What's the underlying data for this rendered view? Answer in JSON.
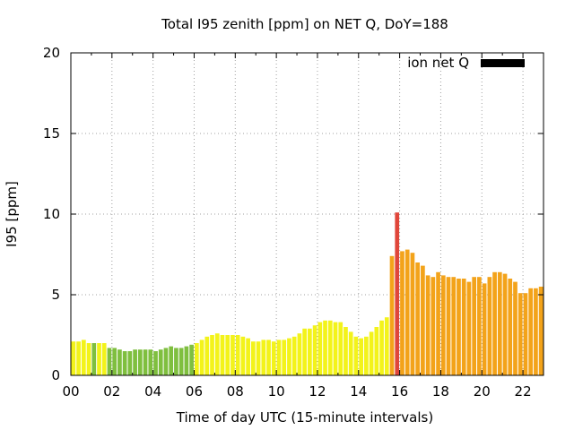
{
  "chart_data": {
    "type": "bar",
    "title": "Total I95 zenith [ppm] on NET Q, DoY=188",
    "xlabel": "Time of day UTC (15-minute intervals)",
    "ylabel": "I95 [ppm]",
    "ylim": [
      0,
      20
    ],
    "xlim": [
      0,
      23
    ],
    "y_ticks": [
      "0",
      "5",
      "10",
      "15",
      "20"
    ],
    "x_ticks": [
      "00",
      "02",
      "04",
      "06",
      "08",
      "10",
      "12",
      "14",
      "16",
      "18",
      "20",
      "22"
    ],
    "grid": true,
    "legend": {
      "label": "ion net Q",
      "color": "#000000",
      "placement": "top-right"
    },
    "interval_hours": 0.25,
    "values": [
      2.1,
      2.1,
      2.2,
      2.0,
      2.0,
      2.0,
      2.0,
      1.7,
      1.7,
      1.6,
      1.5,
      1.5,
      1.6,
      1.6,
      1.6,
      1.6,
      1.5,
      1.6,
      1.7,
      1.8,
      1.7,
      1.7,
      1.8,
      1.9,
      2.0,
      2.2,
      2.4,
      2.5,
      2.6,
      2.5,
      2.5,
      2.5,
      2.5,
      2.4,
      2.3,
      2.1,
      2.1,
      2.2,
      2.2,
      2.1,
      2.2,
      2.2,
      2.3,
      2.4,
      2.6,
      2.9,
      2.9,
      3.1,
      3.3,
      3.4,
      3.4,
      3.3,
      3.3,
      3.0,
      2.7,
      2.4,
      2.3,
      2.4,
      2.7,
      3.0,
      3.4,
      3.6,
      7.4,
      10.1,
      7.7,
      7.8,
      7.6,
      7.0,
      6.8,
      6.2,
      6.1,
      6.4,
      6.2,
      6.1,
      6.1,
      6.0,
      6.0,
      5.8,
      6.1,
      6.1,
      5.7,
      6.1,
      6.4,
      6.4,
      6.3,
      6.0,
      5.8,
      5.1,
      5.1,
      5.4,
      5.4,
      5.5,
      5.0
    ],
    "colors": [
      "#f3f31a",
      "#f3f31a",
      "#f3f31a",
      "#f3f31a",
      "#7fbf3f",
      "#f3f31a",
      "#f3f31a",
      "#7fbf3f",
      "#7fbf3f",
      "#7fbf3f",
      "#7fbf3f",
      "#7fbf3f",
      "#7fbf3f",
      "#7fbf3f",
      "#7fbf3f",
      "#7fbf3f",
      "#7fbf3f",
      "#7fbf3f",
      "#7fbf3f",
      "#7fbf3f",
      "#7fbf3f",
      "#7fbf3f",
      "#7fbf3f",
      "#7fbf3f",
      "#f3f31a",
      "#f3f31a",
      "#f3f31a",
      "#f3f31a",
      "#f3f31a",
      "#f3f31a",
      "#f3f31a",
      "#f3f31a",
      "#f3f31a",
      "#f3f31a",
      "#f3f31a",
      "#f3f31a",
      "#f3f31a",
      "#f3f31a",
      "#f3f31a",
      "#f3f31a",
      "#f3f31a",
      "#f3f31a",
      "#f3f31a",
      "#f3f31a",
      "#f3f31a",
      "#f3f31a",
      "#f3f31a",
      "#f3f31a",
      "#f3f31a",
      "#f3f31a",
      "#f3f31a",
      "#f3f31a",
      "#f3f31a",
      "#f3f31a",
      "#f3f31a",
      "#f3f31a",
      "#f3f31a",
      "#f3f31a",
      "#f3f31a",
      "#f3f31a",
      "#f3f31a",
      "#f3f31a",
      "#f3a31a",
      "#e0463a",
      "#f3a31a",
      "#f3a31a",
      "#f3a31a",
      "#f3a31a",
      "#f3a31a",
      "#f3a31a",
      "#f3a31a",
      "#f3a31a",
      "#f3a31a",
      "#f3a31a",
      "#f3a31a",
      "#f3a31a",
      "#f3a31a",
      "#f3a31a",
      "#f3a31a",
      "#f3a31a",
      "#f3a31a",
      "#f3a31a",
      "#f3a31a",
      "#f3a31a",
      "#f3a31a",
      "#f3a31a",
      "#f3a31a",
      "#f3a31a",
      "#f3a31a",
      "#f3a31a",
      "#f3a31a",
      "#f3a31a",
      "#f3a31a"
    ]
  }
}
